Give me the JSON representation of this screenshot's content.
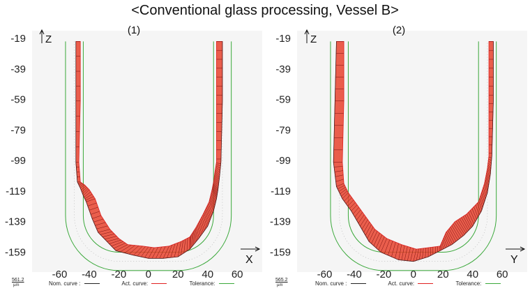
{
  "title": "<Conventional glass processing, Vessel B>",
  "legend": {
    "nominal": "Nom. curve :",
    "actual": "Act. curve:",
    "tolerance": "Tolerance:"
  },
  "colors": {
    "nominal": "#222222",
    "actual": "#e02020",
    "actual_fill": "#e8432e",
    "tolerance": "#3aa83a",
    "axis": "#111111",
    "frame": "#f5f5f5"
  },
  "chart_data": [
    {
      "type": "line",
      "panel_label": "(1)",
      "xlabel": "X",
      "ylabel": "Z",
      "x_ticks": [
        -60,
        -40,
        -20,
        0,
        20,
        40,
        60
      ],
      "y_ticks": [
        -19,
        -39,
        -59,
        -79,
        -99,
        -119,
        -139,
        -159
      ],
      "xlim": [
        -72,
        75
      ],
      "ylim": [
        -172,
        -19
      ],
      "scale": {
        "value": "561.2",
        "unit": "µm"
      },
      "nominal_profile": {
        "half_width": 50,
        "bottom": -165,
        "top": -21,
        "corner_radius": 30
      },
      "tolerance_offset": 6,
      "series": [
        {
          "side": "left",
          "inner": [
            [
              -49,
              -21
            ],
            [
              -49,
              -60
            ],
            [
              -49,
              -100
            ],
            [
              -48,
              -113
            ],
            [
              -46,
              -117
            ],
            [
              -44,
              -122
            ],
            [
              -42,
              -126
            ],
            [
              -38,
              -137
            ],
            [
              -34,
              -146
            ],
            [
              -28,
              -152
            ],
            [
              -22,
              -158
            ],
            [
              -10,
              -161
            ],
            [
              0,
              -163
            ],
            [
              10,
              -163
            ],
            [
              20,
              -162
            ],
            [
              28,
              -157
            ]
          ],
          "outer": [
            [
              -46,
              -21
            ],
            [
              -46,
              -60
            ],
            [
              -47,
              -100
            ],
            [
              -46,
              -113
            ],
            [
              -43,
              -115
            ],
            [
              -40,
              -118
            ],
            [
              -36,
              -124
            ],
            [
              -32,
              -135
            ],
            [
              -26,
              -144
            ],
            [
              -20,
              -150
            ],
            [
              -14,
              -154
            ],
            [
              -4,
              -155
            ],
            [
              4,
              -156
            ],
            [
              14,
              -155
            ],
            [
              22,
              -152
            ],
            [
              28,
              -149
            ]
          ]
        },
        {
          "side": "right",
          "inner": [
            [
              28,
              -157
            ],
            [
              34,
              -150
            ],
            [
              40,
              -142
            ],
            [
              44,
              -132
            ],
            [
              46,
              -124
            ],
            [
              47,
              -118
            ],
            [
              48,
              -110
            ],
            [
              49,
              -100
            ],
            [
              50,
              -60
            ],
            [
              50,
              -21
            ]
          ],
          "outer": [
            [
              28,
              -149
            ],
            [
              32,
              -143
            ],
            [
              37,
              -134
            ],
            [
              41,
              -126
            ],
            [
              43,
              -118
            ],
            [
              44,
              -113
            ],
            [
              45,
              -106
            ],
            [
              46,
              -100
            ],
            [
              46,
              -60
            ],
            [
              46,
              -21
            ]
          ]
        }
      ]
    },
    {
      "type": "line",
      "panel_label": "(2)",
      "xlabel": "Y",
      "ylabel": "Z",
      "x_ticks": [
        -60,
        -40,
        -20,
        0,
        20,
        40,
        60
      ],
      "y_ticks": [
        -19,
        -39,
        -59,
        -79,
        -99,
        -119,
        -139,
        -159
      ],
      "xlim": [
        -72,
        75
      ],
      "ylim": [
        -172,
        -19
      ],
      "scale": {
        "value": "565.2",
        "unit": "µm"
      },
      "nominal_profile": {
        "half_width": 50,
        "bottom": -165,
        "top": -21,
        "corner_radius": 30
      },
      "tolerance_offset": 6,
      "series": [
        {
          "side": "left",
          "inner": [
            [
              -52,
              -21
            ],
            [
              -53,
              -60
            ],
            [
              -54,
              -100
            ],
            [
              -52,
              -116
            ],
            [
              -48,
              -124
            ],
            [
              -42,
              -132
            ],
            [
              -36,
              -142
            ],
            [
              -30,
              -152
            ],
            [
              -22,
              -159
            ],
            [
              -10,
              -164
            ],
            [
              0,
              -165
            ],
            [
              10,
              -162
            ],
            [
              18,
              -158
            ]
          ],
          "outer": [
            [
              -47,
              -21
            ],
            [
              -47,
              -60
            ],
            [
              -48,
              -100
            ],
            [
              -47,
              -114
            ],
            [
              -44,
              -120
            ],
            [
              -38,
              -128
            ],
            [
              -32,
              -136
            ],
            [
              -26,
              -144
            ],
            [
              -18,
              -150
            ],
            [
              -8,
              -154
            ],
            [
              2,
              -157
            ],
            [
              10,
              -156
            ],
            [
              18,
              -155
            ]
          ]
        },
        {
          "side": "right",
          "inner": [
            [
              18,
              -158
            ],
            [
              26,
              -154
            ],
            [
              34,
              -148
            ],
            [
              40,
              -142
            ],
            [
              46,
              -132
            ],
            [
              50,
              -120
            ],
            [
              52,
              -108
            ],
            [
              53,
              -96
            ],
            [
              54,
              -60
            ],
            [
              54,
              -21
            ]
          ],
          "outer": [
            [
              18,
              -155
            ],
            [
              22,
              -146
            ],
            [
              28,
              -139
            ],
            [
              36,
              -134
            ],
            [
              44,
              -126
            ],
            [
              48,
              -114
            ],
            [
              50,
              -104
            ],
            [
              51,
              -96
            ],
            [
              51,
              -60
            ],
            [
              51,
              -21
            ]
          ]
        }
      ]
    }
  ]
}
